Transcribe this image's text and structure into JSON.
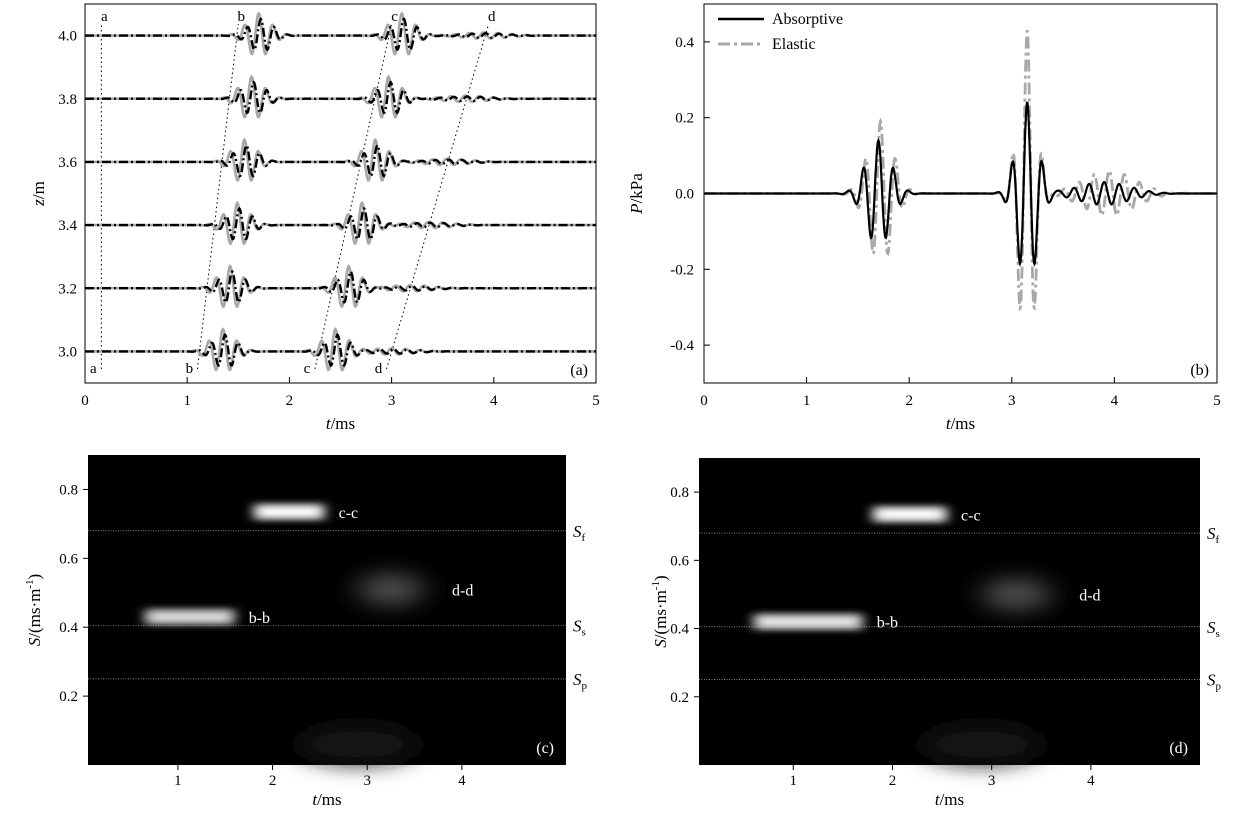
{
  "chart_data": [
    {
      "panel": "a",
      "type": "line",
      "xlabel": "t/ms",
      "ylabel": "z/m",
      "xlim": [
        0,
        5
      ],
      "ylim": [
        2.9,
        4.1
      ],
      "xticks": [
        "0",
        "1",
        "2",
        "3",
        "4",
        "5"
      ],
      "yticks": [
        "3.0",
        "3.2",
        "3.4",
        "3.6",
        "3.8",
        "4.0"
      ],
      "tag": "(a)",
      "traces_z": [
        3.0,
        3.2,
        3.4,
        3.6,
        3.8,
        4.0
      ],
      "markers": [
        {
          "label": "a",
          "t_bottom": 0.16,
          "t_top": 0.16
        },
        {
          "label": "b",
          "t_bottom": 1.1,
          "t_top": 1.5
        },
        {
          "label": "c",
          "t_bottom": 2.25,
          "t_top": 3.0
        },
        {
          "label": "d",
          "t_bottom": 2.95,
          "t_top": 3.95
        }
      ],
      "wave_groups": [
        {
          "name": "b",
          "t_center_bottom": 1.35,
          "t_center_top": 1.7,
          "amp": 0.07
        },
        {
          "name": "c",
          "t_center_bottom": 2.45,
          "t_center_top": 3.1,
          "amp": 0.07
        },
        {
          "name": "d",
          "t_center_bottom": 3.0,
          "t_center_top": 3.9,
          "amp": 0.01
        }
      ]
    },
    {
      "panel": "b",
      "type": "line",
      "xlabel": "t/ms",
      "ylabel": "P/kPa",
      "xlim": [
        0,
        5
      ],
      "ylim": [
        -0.5,
        0.5
      ],
      "xticks": [
        "0",
        "1",
        "2",
        "3",
        "4",
        "5"
      ],
      "yticks": [
        "-0.4",
        "-0.2",
        "0.0",
        "0.2",
        "0.4"
      ],
      "tag": "(b)",
      "legend": [
        "Absorptive",
        "Elastic"
      ],
      "legend_position": "top-left",
      "series": [
        {
          "name": "Absorptive",
          "color": "#000000",
          "style": "solid",
          "packets": [
            {
              "t": 1.7,
              "amp": 0.14,
              "width": 0.17
            },
            {
              "t": 3.15,
              "amp": 0.24,
              "width": 0.14
            },
            {
              "t": 3.9,
              "amp": 0.03,
              "width": 0.35
            }
          ]
        },
        {
          "name": "Elastic",
          "color": "#a8a8a8",
          "style": "dash-dot",
          "packets": [
            {
              "t": 1.72,
              "amp": 0.19,
              "width": 0.17
            },
            {
              "t": 3.15,
              "amp": 0.43,
              "width": 0.12
            },
            {
              "t": 3.95,
              "amp": 0.06,
              "width": 0.35
            }
          ]
        }
      ]
    },
    {
      "panel": "c",
      "type": "heatmap",
      "xlabel": "t/ms",
      "ylabel": "S/(ms·m",
      "ylabel_sup": "-1",
      "ylabel_close": ")",
      "xlim": [
        0.05,
        5.1
      ],
      "ylim": [
        0,
        0.9
      ],
      "xticks": [
        "1",
        "2",
        "3",
        "4"
      ],
      "yticks": [
        "0.2",
        "0.4",
        "0.6",
        "0.8"
      ],
      "tag": "(c)",
      "ref_lines": [
        {
          "label": "S",
          "sub": "f",
          "s": 0.68
        },
        {
          "label": "S",
          "sub": "s",
          "s": 0.405
        },
        {
          "label": "S",
          "sub": "p",
          "s": 0.25
        }
      ],
      "blobs": [
        {
          "label": "b-b",
          "t0": 0.65,
          "t1": 1.6,
          "s": 0.43,
          "intensity": 0.85
        },
        {
          "label": "c-c",
          "t0": 1.8,
          "t1": 2.55,
          "s": 0.735,
          "intensity": 1.0
        },
        {
          "label": "d-d",
          "t0": 2.9,
          "t1": 3.6,
          "s": 0.51,
          "intensity": 0.3
        }
      ]
    },
    {
      "panel": "d",
      "type": "heatmap",
      "xlabel": "t/ms",
      "ylabel": "S/(ms·m",
      "ylabel_sup": "-1",
      "ylabel_close": ")",
      "xlim": [
        0.05,
        5.1
      ],
      "ylim": [
        0,
        0.9
      ],
      "xticks": [
        "1",
        "2",
        "3",
        "4"
      ],
      "yticks": [
        "0.2",
        "0.4",
        "0.6",
        "0.8"
      ],
      "tag": "(d)",
      "ref_lines": [
        {
          "label": "S",
          "sub": "f",
          "s": 0.68
        },
        {
          "label": "S",
          "sub": "s",
          "s": 0.405
        },
        {
          "label": "S",
          "sub": "p",
          "s": 0.25
        }
      ],
      "blobs": [
        {
          "label": "b-b",
          "t0": 0.6,
          "t1": 1.7,
          "s": 0.42,
          "intensity": 0.9
        },
        {
          "label": "c-c",
          "t0": 1.8,
          "t1": 2.55,
          "s": 0.735,
          "intensity": 1.0
        },
        {
          "label": "d-d",
          "t0": 2.9,
          "t1": 3.6,
          "s": 0.5,
          "intensity": 0.3
        }
      ]
    }
  ]
}
